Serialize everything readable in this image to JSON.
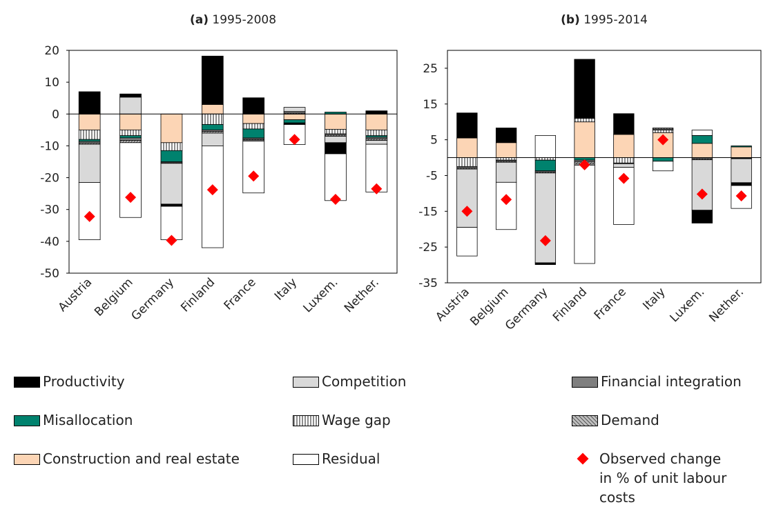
{
  "chart_data": [
    {
      "type": "bar",
      "label": "(a)",
      "title": "1995-2008",
      "categories": [
        "Austria",
        "Belgium",
        "Germany",
        "Finland",
        "France",
        "Italy",
        "Luxem.",
        "Nether."
      ],
      "ylim": [
        -50,
        20
      ],
      "yticks": [
        -50,
        -40,
        -30,
        -20,
        -10,
        0,
        10,
        20
      ],
      "series": [
        {
          "name": "Productivity",
          "color": "#000000",
          "values": [
            7,
            1,
            -0.7,
            15.2,
            5.1,
            -0.5,
            -3.5,
            1
          ]
        },
        {
          "name": "Competition",
          "color": "#d9d9d9",
          "values": [
            -12,
            5.3,
            -12.8,
            -4,
            -0.3,
            1.3,
            -2,
            -1.2
          ]
        },
        {
          "name": "Financial integration",
          "color": "#7f7f7f",
          "values": [
            -0.5,
            -0.8,
            -0.3,
            -0.5,
            -0.4,
            0.5,
            -0.4,
            -0.5
          ]
        },
        {
          "name": "Misallocation",
          "color": "#00826e",
          "values": [
            -0.6,
            -0.7,
            -3.5,
            -1.7,
            -2.8,
            -1,
            0.6,
            -0.5
          ]
        },
        {
          "name": "Wage gap",
          "color": "#bfbfbf",
          "pattern": "vertical",
          "values": [
            -3,
            -1.8,
            -2.5,
            -3.3,
            -1.7,
            0.3,
            -1.4,
            -1.8
          ]
        },
        {
          "name": "Demand",
          "color": "#8c8c8c",
          "pattern": "diagonal",
          "values": [
            -0.4,
            -0.7,
            -0.2,
            -0.5,
            -0.3,
            0,
            -0.4,
            -0.5
          ]
        },
        {
          "name": "Construction and real estate",
          "color": "#fcd5b5",
          "values": [
            -5,
            -5,
            -9,
            3,
            -3,
            -1.8,
            -4.8,
            -5
          ]
        },
        {
          "name": "Residual",
          "color": "#ffffff",
          "values": [
            -18,
            -23.5,
            -10.5,
            -32,
            -16.3,
            -6.3,
            -14.7,
            -15
          ]
        }
      ],
      "markers": {
        "name": "Observed change in % of unit labour costs",
        "color": "#ff0000",
        "values": [
          -32.2,
          -26.2,
          -39.7,
          -23.8,
          -19.5,
          -8,
          -26.8,
          -23.5
        ]
      }
    },
    {
      "type": "bar",
      "label": "(b)",
      "title": "1995-2014",
      "categories": [
        "Austria",
        "Belgium",
        "Germany",
        "Finland",
        "France",
        "Italy",
        "Luxem.",
        "Nether."
      ],
      "ylim": [
        -35,
        30
      ],
      "yticks": [
        -35,
        -25,
        -15,
        -5,
        5,
        15,
        25
      ],
      "series": [
        {
          "name": "Productivity",
          "color": "#000000",
          "values": [
            7,
            4.1,
            -0.5,
            16.5,
            5.8,
            0,
            -3.6,
            -0.8
          ]
        },
        {
          "name": "Competition",
          "color": "#d9d9d9",
          "values": [
            -16.3,
            -5.6,
            -25.1,
            -0.3,
            -1,
            0,
            -14.1,
            -6.7
          ]
        },
        {
          "name": "Financial integration",
          "color": "#7f7f7f",
          "values": [
            -0.4,
            -0.3,
            -0.3,
            -0.5,
            -0.2,
            0.3,
            -0.3,
            -0.2
          ]
        },
        {
          "name": "Misallocation",
          "color": "#00826e",
          "values": [
            0,
            0,
            -3,
            -0.7,
            0,
            -1,
            2.2,
            0.3
          ]
        },
        {
          "name": "Wage gap",
          "color": "#bfbfbf",
          "pattern": "vertical",
          "values": [
            -2.5,
            -0.7,
            -0.7,
            1,
            -1.5,
            0.7,
            0,
            0
          ]
        },
        {
          "name": "Demand",
          "color": "#8c8c8c",
          "pattern": "diagonal",
          "values": [
            -0.3,
            -0.3,
            -0.3,
            -0.6,
            0,
            0.3,
            -0.3,
            -0.1
          ]
        },
        {
          "name": "Construction and real estate",
          "color": "#fcd5b5",
          "values": [
            5.5,
            4.2,
            0,
            10,
            6.5,
            7,
            4,
            3
          ]
        },
        {
          "name": "Residual",
          "color": "#ffffff",
          "values": [
            -8,
            -13.2,
            6.2,
            -27.5,
            -16,
            -2.7,
            1.5,
            -6.4
          ]
        }
      ],
      "markers": {
        "name": "Observed change in % of unit labour costs",
        "color": "#ff0000",
        "values": [
          -15,
          -11.7,
          -23.2,
          -2,
          -5.8,
          5,
          -10.2,
          -10.7
        ]
      }
    }
  ]
}
